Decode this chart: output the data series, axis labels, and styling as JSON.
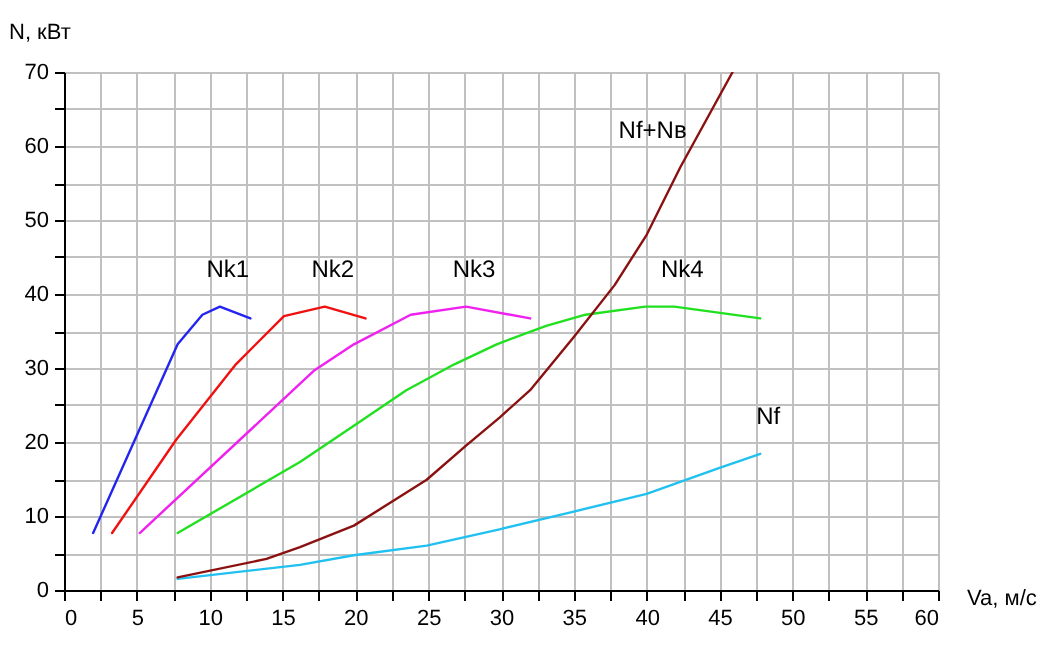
{
  "chart_data": {
    "type": "line",
    "xlabel": "Va, м/с",
    "ylabel": "N, кВт",
    "xlim": [
      0,
      60
    ],
    "ylim": [
      0,
      70
    ],
    "xticks": [
      0,
      {
        "value": 2.5,
        "label": null
      },
      5,
      {
        "value": 7.5,
        "label": null
      },
      10,
      {
        "value": 12.5,
        "label": null
      },
      15,
      {
        "value": 17.5,
        "label": null
      },
      20,
      {
        "value": 22.5,
        "label": null
      },
      25,
      {
        "value": 27.5,
        "label": null
      },
      30,
      {
        "value": 32.5,
        "label": null
      },
      35,
      {
        "value": 37.5,
        "label": null
      },
      40,
      {
        "value": 42.5,
        "label": null
      },
      45,
      {
        "value": 47.5,
        "label": null
      },
      50,
      {
        "value": 52.5,
        "label": null
      },
      55,
      {
        "value": 57.5,
        "label": null
      },
      60
    ],
    "yticks": [
      0,
      {
        "value": 5,
        "label": null
      },
      10,
      {
        "value": 15,
        "label": null
      },
      20,
      {
        "value": 25,
        "label": null
      },
      30,
      {
        "value": 35,
        "label": null
      },
      40,
      {
        "value": 45,
        "label": null
      },
      50,
      {
        "value": 55,
        "label": null
      },
      60,
      {
        "value": 65,
        "label": null
      },
      70
    ],
    "grid": true,
    "legend": false,
    "marker": "none",
    "line_style": "solid",
    "series": [
      {
        "name": "Nk1",
        "color": "#2424f0",
        "x": [
          2,
          7.8,
          9.5,
          10.7,
          12.8
        ],
        "values": [
          7.7,
          33.2,
          37.2,
          38.3,
          36.7
        ]
      },
      {
        "name": "Nk2",
        "color": "#f01010",
        "x": [
          3.3,
          7.7,
          11.8,
          15.1,
          17.9,
          20.7
        ],
        "values": [
          7.7,
          20.3,
          30.5,
          37,
          38.3,
          36.7
        ]
      },
      {
        "name": "Nk3",
        "color": "#f020f0",
        "x": [
          5.2,
          17.2,
          19.9,
          23.8,
          27.6,
          32
        ],
        "values": [
          7.7,
          29.7,
          33.2,
          37.2,
          38.3,
          36.7
        ]
      },
      {
        "name": "Nk4",
        "color": "#20e020",
        "x": [
          7.8,
          16.2,
          19.9,
          23.5,
          26.8,
          29.7,
          33.1,
          35.8,
          39.9,
          41.9,
          47.8
        ],
        "values": [
          7.7,
          17.3,
          22.2,
          27,
          30.5,
          33.2,
          35.7,
          37.2,
          38.3,
          38.3,
          36.7
        ]
      },
      {
        "name": "Nf",
        "color": "#20c0f0",
        "x": [
          7.8,
          16.2,
          19.9,
          24.9,
          29.9,
          35,
          40,
          45,
          47.8
        ],
        "values": [
          1.5,
          3.4,
          4.7,
          6,
          8.2,
          10.6,
          13,
          16.5,
          18.4
        ]
      },
      {
        "name": "Nf+Nв",
        "color": "#8b1010",
        "x": [
          7.8,
          13.9,
          16.2,
          19.9,
          24.9,
          27.6,
          29.9,
          32,
          35,
          37.8,
          40,
          42.3,
          45.9
        ],
        "values": [
          1.7,
          4.2,
          5.8,
          8.7,
          14.9,
          19.5,
          23.3,
          27,
          34.2,
          41.2,
          48,
          57.1,
          70
        ]
      }
    ]
  }
}
